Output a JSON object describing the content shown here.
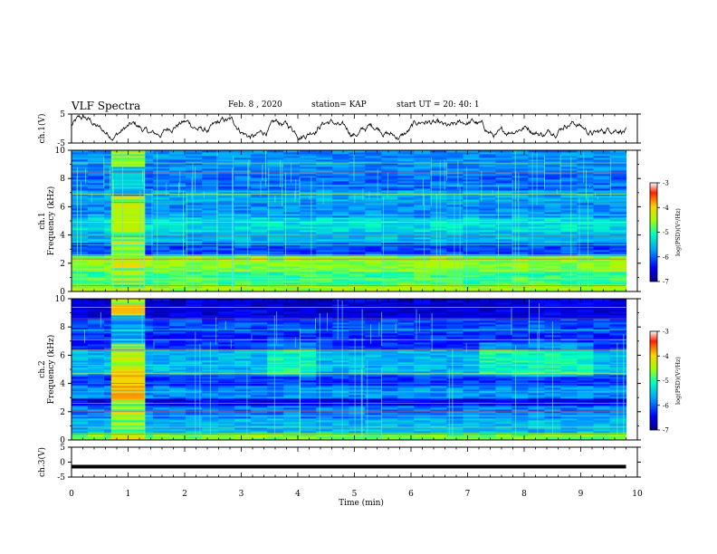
{
  "header": {
    "title": "VLF Spectra",
    "date": "Feb. 8 , 2020",
    "station": "station= KAP",
    "start": "start UT = 20: 40: 1"
  },
  "chart_data": [
    {
      "type": "line",
      "panel": "ch1-time-series",
      "ylabel": "ch.1(V)",
      "ylim": [
        -5,
        5
      ],
      "yticks": [
        "5",
        "-5"
      ],
      "xlim": [
        0,
        10
      ],
      "trace_range": [
        0,
        9.8
      ],
      "description_of_series": "noisy waveform oscillating roughly between -4 and +4 V"
    },
    {
      "type": "heatmap",
      "panel": "ch1-spectrogram",
      "ylabel_top": "ch.1",
      "ylabel": "Frequency (kHz)",
      "ylim": [
        0,
        10
      ],
      "yticks": [
        "0",
        "2",
        "4",
        "6",
        "8",
        "10"
      ],
      "xlim": [
        0,
        10
      ],
      "data_range": [
        0,
        9.8
      ],
      "burst": [
        0.7,
        1.3
      ],
      "colorbar": {
        "label": "log(PSD)(V²/Hz)",
        "range": [
          -7,
          -3
        ],
        "ticks": [
          "-3",
          "-4",
          "-5",
          "-6",
          "-7"
        ]
      }
    },
    {
      "type": "heatmap",
      "panel": "ch2-spectrogram",
      "ylabel_top": "ch.2",
      "ylabel": "Frequency (kHz)",
      "ylim": [
        0,
        10
      ],
      "yticks": [
        "0",
        "2",
        "4",
        "6",
        "8",
        "10"
      ],
      "xlim": [
        0,
        10
      ],
      "data_range": [
        0,
        9.8
      ],
      "burst": [
        0.7,
        1.3
      ],
      "colorbar": {
        "label": "log(PSD)(V²/Hz)",
        "range": [
          -7,
          -3
        ],
        "ticks": [
          "-3",
          "-4",
          "-5",
          "-6",
          "-7"
        ]
      }
    },
    {
      "type": "line",
      "panel": "ch3-time-series",
      "ylabel": "ch.3(V)",
      "ylim": [
        -5,
        5
      ],
      "yticks": [
        "5",
        "0",
        "-5"
      ],
      "xlim": [
        0,
        10
      ],
      "trace": {
        "x": [
          0,
          9.8
        ],
        "y": [
          -1.5,
          -1.5
        ]
      }
    }
  ],
  "xaxis": {
    "label": "Time (min)",
    "ticks": [
      "0",
      "1",
      "2",
      "3",
      "4",
      "5",
      "6",
      "7",
      "8",
      "9",
      "10"
    ]
  }
}
